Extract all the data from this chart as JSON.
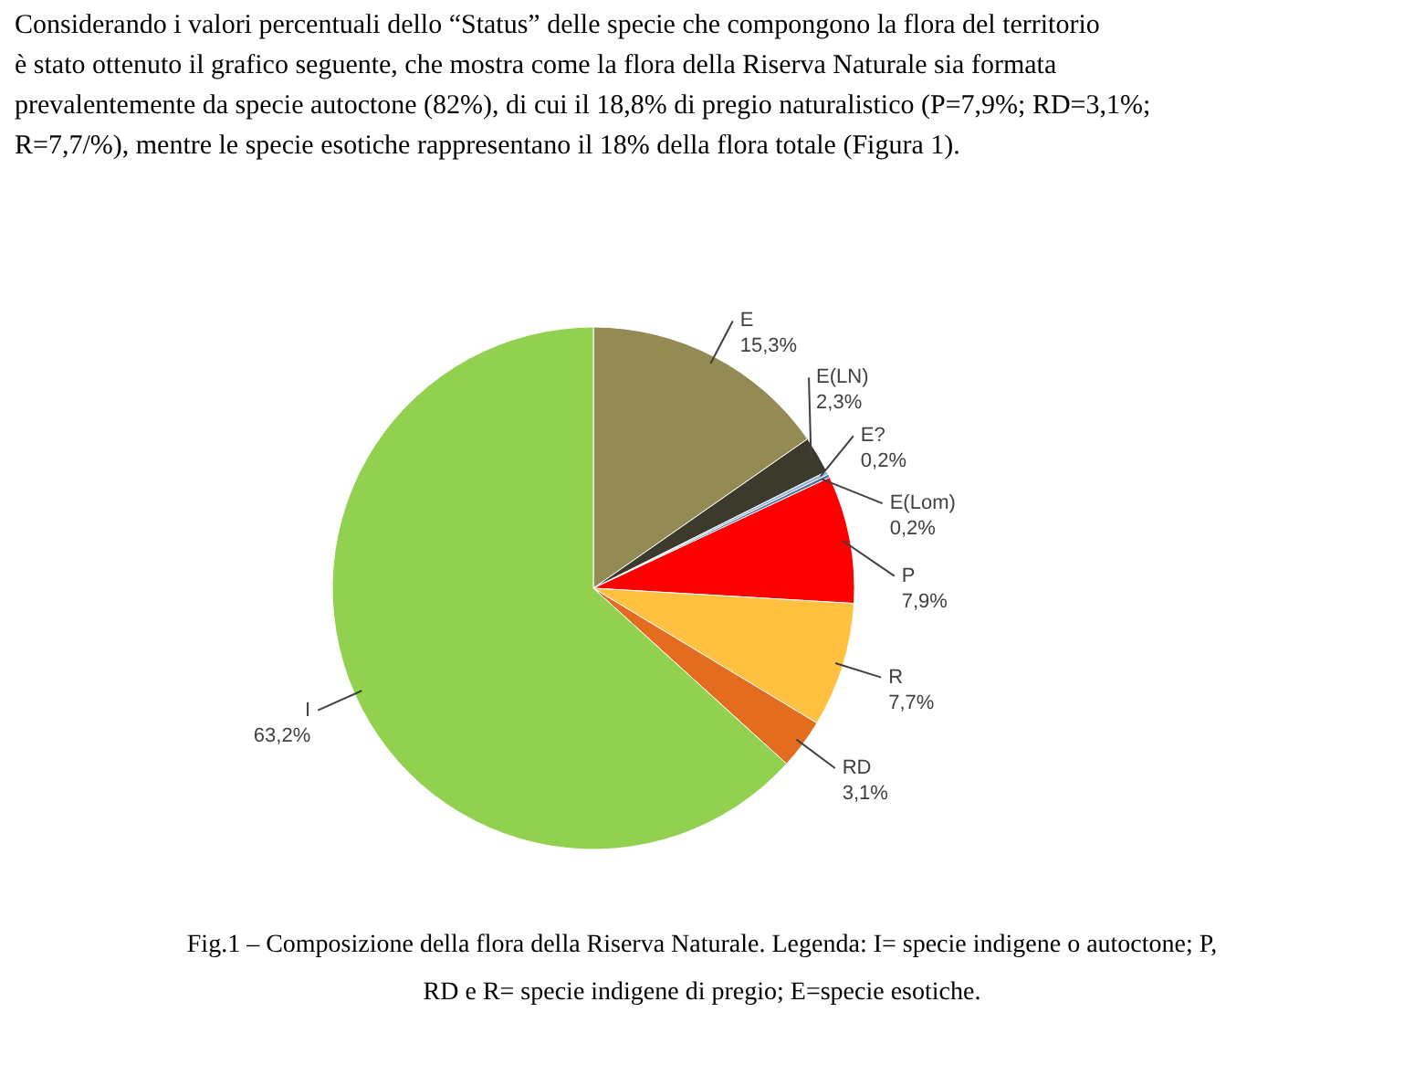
{
  "chart_data": {
    "type": "pie",
    "title": "Considerando i valori percentuali dello “Status” delle specie che compongono la flora del territorio è stato ottenuto il grafico seguente, che mostra come la flora della Riserva Naturale sia formata prevalentemente da specie autoctone (82%), di cui il 18,8% di pregio naturalistico (P=7,9%; RD=3,1%; R=7,7/%), mentre le specie esotiche rappresentano il 18% della flora totale (Figura 1).",
    "categories": [
      "E",
      "E(LN)",
      "E?",
      "E(Lom)",
      "P",
      "R",
      "RD",
      "I"
    ],
    "values": [
      15.3,
      2.3,
      0.2,
      0.2,
      7.9,
      7.7,
      3.1,
      63.2
    ],
    "value_labels": [
      "15,3%",
      "2,3%",
      "0,2%",
      "0,2%",
      "7,9%",
      "7,7%",
      "3,1%",
      "63,2%"
    ],
    "colors": [
      "#948a54",
      "#3b3a2c",
      "#8db3e2",
      "#4f6fa0",
      "#ff0000",
      "#ffc13f",
      "#e46c1f",
      "#92d050"
    ],
    "annotations": [
      "Fig.1 – Composizione della flora della Riserva Naturale. Legenda: I= specie indigene o autoctone; P, RD e R= specie indigene di pregio; E=specie esotiche."
    ]
  }
}
